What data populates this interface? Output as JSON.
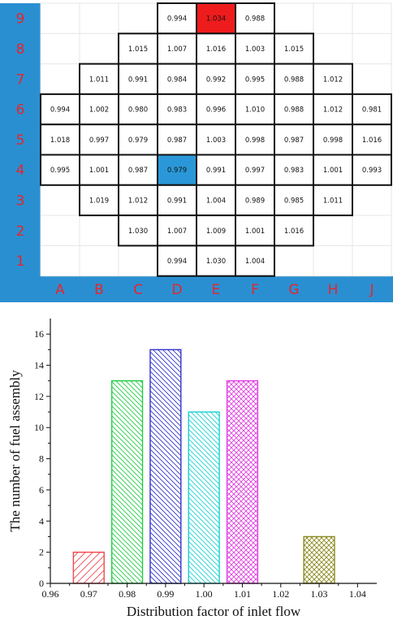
{
  "core_map": {
    "rows": [
      "9",
      "8",
      "7",
      "6",
      "5",
      "4",
      "3",
      "2",
      "1"
    ],
    "columns": [
      "A",
      "B",
      "C",
      "D",
      "E",
      "F",
      "G",
      "H",
      "J"
    ],
    "label_color": "#e8242a",
    "sidebar_color": "#2a8fd1",
    "max_cell_color": "#ee1c1c",
    "min_cell_color": "#2a98d8",
    "cells": [
      {
        "row": "9",
        "col": "D",
        "value": "0.994"
      },
      {
        "row": "9",
        "col": "E",
        "value": "1.034",
        "highlight": "max"
      },
      {
        "row": "9",
        "col": "F",
        "value": "0.988"
      },
      {
        "row": "8",
        "col": "C",
        "value": "1.015"
      },
      {
        "row": "8",
        "col": "D",
        "value": "1.007"
      },
      {
        "row": "8",
        "col": "E",
        "value": "1.016"
      },
      {
        "row": "8",
        "col": "F",
        "value": "1.003"
      },
      {
        "row": "8",
        "col": "G",
        "value": "1.015"
      },
      {
        "row": "7",
        "col": "B",
        "value": "1.011"
      },
      {
        "row": "7",
        "col": "C",
        "value": "0.991"
      },
      {
        "row": "7",
        "col": "D",
        "value": "0.984"
      },
      {
        "row": "7",
        "col": "E",
        "value": "0.992"
      },
      {
        "row": "7",
        "col": "F",
        "value": "0.995"
      },
      {
        "row": "7",
        "col": "G",
        "value": "0.988"
      },
      {
        "row": "7",
        "col": "H",
        "value": "1.012"
      },
      {
        "row": "6",
        "col": "A",
        "value": "0.994"
      },
      {
        "row": "6",
        "col": "B",
        "value": "1.002"
      },
      {
        "row": "6",
        "col": "C",
        "value": "0.980"
      },
      {
        "row": "6",
        "col": "D",
        "value": "0.983"
      },
      {
        "row": "6",
        "col": "E",
        "value": "0.996"
      },
      {
        "row": "6",
        "col": "F",
        "value": "1.010"
      },
      {
        "row": "6",
        "col": "G",
        "value": "0.988"
      },
      {
        "row": "6",
        "col": "H",
        "value": "1.012"
      },
      {
        "row": "6",
        "col": "J",
        "value": "0.981"
      },
      {
        "row": "5",
        "col": "A",
        "value": "1.018"
      },
      {
        "row": "5",
        "col": "B",
        "value": "0.997"
      },
      {
        "row": "5",
        "col": "C",
        "value": "0.979"
      },
      {
        "row": "5",
        "col": "D",
        "value": "0.987"
      },
      {
        "row": "5",
        "col": "E",
        "value": "1.003"
      },
      {
        "row": "5",
        "col": "F",
        "value": "0.998"
      },
      {
        "row": "5",
        "col": "G",
        "value": "0.987"
      },
      {
        "row": "5",
        "col": "H",
        "value": "0.998"
      },
      {
        "row": "5",
        "col": "J",
        "value": "1.016"
      },
      {
        "row": "4",
        "col": "A",
        "value": "0.995"
      },
      {
        "row": "4",
        "col": "B",
        "value": "1.001"
      },
      {
        "row": "4",
        "col": "C",
        "value": "0.987"
      },
      {
        "row": "4",
        "col": "D",
        "value": "0.979",
        "highlight": "min"
      },
      {
        "row": "4",
        "col": "E",
        "value": "0.991"
      },
      {
        "row": "4",
        "col": "F",
        "value": "0.997"
      },
      {
        "row": "4",
        "col": "G",
        "value": "0.983"
      },
      {
        "row": "4",
        "col": "H",
        "value": "1.001"
      },
      {
        "row": "4",
        "col": "J",
        "value": "0.993"
      },
      {
        "row": "3",
        "col": "B",
        "value": "1.019"
      },
      {
        "row": "3",
        "col": "C",
        "value": "1.012"
      },
      {
        "row": "3",
        "col": "D",
        "value": "0.991"
      },
      {
        "row": "3",
        "col": "E",
        "value": "1.004"
      },
      {
        "row": "3",
        "col": "F",
        "value": "0.989"
      },
      {
        "row": "3",
        "col": "G",
        "value": "0.985"
      },
      {
        "row": "3",
        "col": "H",
        "value": "1.011"
      },
      {
        "row": "2",
        "col": "C",
        "value": "1.030"
      },
      {
        "row": "2",
        "col": "D",
        "value": "1.007"
      },
      {
        "row": "2",
        "col": "E",
        "value": "1.009"
      },
      {
        "row": "2",
        "col": "F",
        "value": "1.001"
      },
      {
        "row": "2",
        "col": "G",
        "value": "1.016"
      },
      {
        "row": "1",
        "col": "D",
        "value": "0.994"
      },
      {
        "row": "1",
        "col": "E",
        "value": "1.030"
      },
      {
        "row": "1",
        "col": "F",
        "value": "1.004"
      }
    ]
  },
  "chart_data": {
    "type": "bar",
    "xlabel": "Distribution factor of inlet flow",
    "ylabel": "The number of fuel assembly",
    "xlim": [
      0.96,
      1.045
    ],
    "ylim": [
      0,
      17
    ],
    "xticks": [
      "0.96",
      "0.97",
      "0.98",
      "0.99",
      "1.00",
      "1.01",
      "1.02",
      "1.03",
      "1.04"
    ],
    "yticks": [
      "0",
      "2",
      "4",
      "6",
      "8",
      "10",
      "12",
      "14",
      "16"
    ],
    "grid": false,
    "bar_width": 0.008,
    "bars": [
      {
        "x": 0.97,
        "value": 2,
        "color": "#f0484f",
        "pattern": "diag-right-sparse"
      },
      {
        "x": 0.98,
        "value": 13,
        "color": "#22cc44",
        "pattern": "diag-left"
      },
      {
        "x": 0.99,
        "value": 15,
        "color": "#3333cc",
        "pattern": "diag-left"
      },
      {
        "x": 1.0,
        "value": 11,
        "color": "#18d0d0",
        "pattern": "diag-left"
      },
      {
        "x": 1.01,
        "value": 13,
        "color": "#e040e0",
        "pattern": "cross"
      },
      {
        "x": 1.03,
        "value": 3,
        "color": "#8a8a20",
        "pattern": "cross"
      }
    ]
  }
}
